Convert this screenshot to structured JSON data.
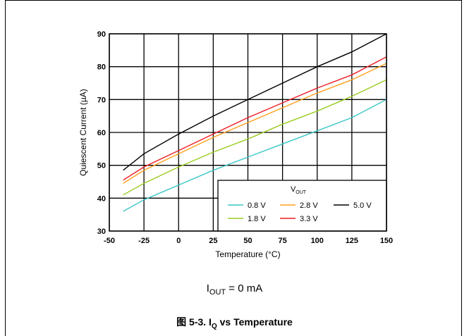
{
  "chart_data": {
    "type": "line",
    "xlabel": "Temperature (°C)",
    "ylabel": "Quiescent Current (µA)",
    "xlim": [
      -50,
      150
    ],
    "ylim": [
      30,
      90
    ],
    "xticks": [
      -50,
      -25,
      0,
      25,
      50,
      75,
      100,
      125,
      150
    ],
    "yticks": [
      30,
      40,
      50,
      60,
      70,
      80,
      90
    ],
    "grid": true,
    "legend": {
      "title": "VOUT",
      "placement": "bottom-right"
    },
    "x": [
      -40,
      -25,
      0,
      25,
      50,
      75,
      100,
      125,
      150
    ],
    "series": [
      {
        "name": "0.8 V",
        "color": "#3cc6c6",
        "values": [
          36.0,
          39.5,
          44.0,
          48.5,
          52.5,
          56.5,
          60.5,
          64.5,
          70.0
        ]
      },
      {
        "name": "1.8 V",
        "color": "#99cc22",
        "values": [
          41.0,
          44.5,
          49.5,
          54.0,
          58.0,
          62.5,
          66.5,
          71.0,
          76.0
        ]
      },
      {
        "name": "2.8 V",
        "color": "#ff9f1a",
        "values": [
          44.5,
          48.5,
          53.5,
          58.5,
          63.0,
          67.5,
          72.0,
          76.0,
          81.0
        ]
      },
      {
        "name": "3.3 V",
        "color": "#ee1c25",
        "values": [
          45.5,
          49.5,
          54.5,
          59.5,
          64.5,
          69.0,
          73.5,
          77.5,
          83.0
        ]
      },
      {
        "name": "5.0 V",
        "color": "#000000",
        "values": [
          48.5,
          53.5,
          59.5,
          65.0,
          70.0,
          75.0,
          80.0,
          84.5,
          90.0
        ]
      }
    ]
  },
  "caption": {
    "condition_prefix": "I",
    "condition_sub": "OUT",
    "condition_rest": " = 0 mA",
    "title_prefix": "图 5-3. I",
    "title_sub": "Q",
    "title_rest": " vs Temperature"
  }
}
